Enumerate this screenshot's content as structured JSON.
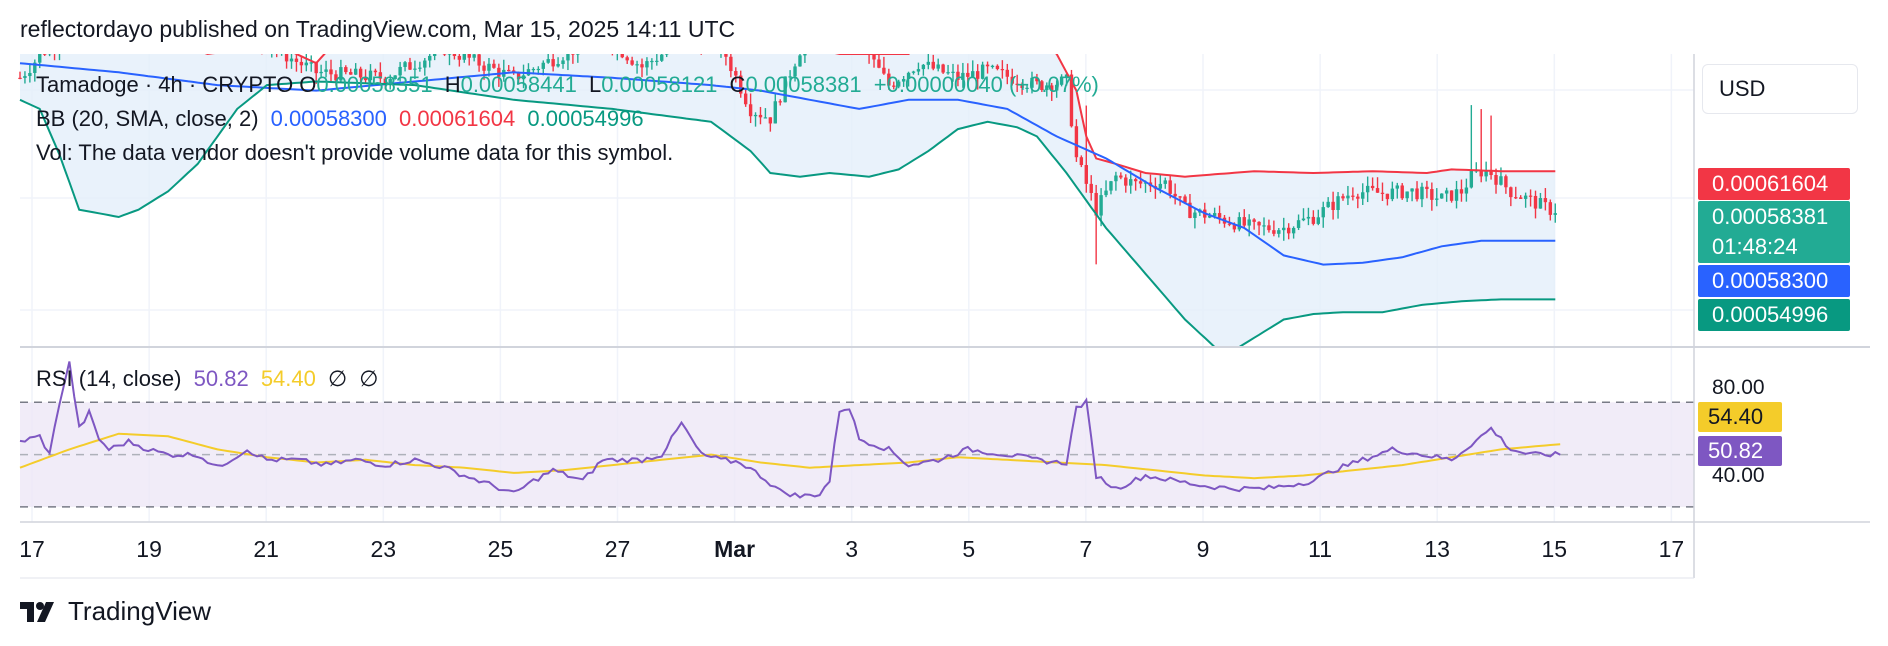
{
  "header": {
    "text": "reflectordayo published on TradingView.com, Mar 15, 2025 14:11 UTC"
  },
  "legend": {
    "symbol": "Tamadoge · 4h · CRYPTO",
    "o_label": "O",
    "o_value": "0.00058351",
    "h_label": "H",
    "h_value": "0.00058441",
    "l_label": "L",
    "l_value": "0.00058121",
    "c_label": "C",
    "c_value": "0.00058381",
    "change": "+0.00000040 (+0.07%)",
    "bb_label": "BB (20, SMA, close, 2)",
    "bb_basis": "0.00058300",
    "bb_upper": "0.00061604",
    "bb_lower": "0.00054996",
    "vol": "Vol: The data vendor doesn't provide volume data for this symbol.",
    "rsi_label": "RSI (14, close)",
    "rsi_value": "50.82",
    "rsi_ma": "54.40",
    "rsi_extra1": "∅",
    "rsi_extra2": "∅"
  },
  "price_scale": {
    "currency": "USD",
    "tag_upper": "0.00061604",
    "tag_close": "0.00058381",
    "tag_countdown": "01:48:24",
    "tag_basis": "0.00058300",
    "tag_lower": "0.00054996"
  },
  "rsi_scale": {
    "tick_high": "80.00",
    "tick_low": "40.00",
    "tag_ma": "54.40",
    "tag_rsi": "50.82"
  },
  "colors": {
    "up": "#22ab94",
    "down": "#f23645",
    "bb_basis": "#2962ff",
    "bb_upper": "#f23645",
    "bb_lower": "#089981",
    "bb_fill": "#e3effa",
    "rsi": "#7e57c2",
    "rsi_ma": "#f4cc2a",
    "rsi_band": "#ede7f6"
  },
  "x_axis": {
    "ticks": [
      "17",
      "19",
      "21",
      "23",
      "25",
      "27",
      "Mar",
      "3",
      "5",
      "7",
      "9",
      "11",
      "13",
      "15",
      "17"
    ]
  },
  "footer": {
    "brand": "TradingView",
    "logo": "tradingview-logo-icon"
  },
  "chart_data": {
    "type": "candlestick",
    "symbol": "Tamadoge",
    "interval": "4h",
    "x_range": [
      "Feb 17",
      "Mar 17"
    ],
    "price_ylim": [
      0.000525,
      0.000685
    ],
    "bollinger": {
      "period": 20,
      "upper_anchor_points": [
        [
          0,
          0.0007
        ],
        [
          8,
          0.00069
        ],
        [
          18,
          0.000705
        ],
        [
          38,
          0.000685
        ],
        [
          52,
          0.00069
        ],
        [
          60,
          0.00068
        ],
        [
          70,
          0.00071
        ],
        [
          80,
          0.00069
        ],
        [
          100,
          0.0007
        ],
        [
          120,
          0.000695
        ],
        [
          135,
          0.00071
        ],
        [
          145,
          0.0007
        ],
        [
          150,
          0.000705
        ],
        [
          158,
          0.00069
        ],
        [
          166,
          0.000685
        ],
        [
          180,
          0.000685
        ],
        [
          186,
          0.0007
        ],
        [
          200,
          0.000705
        ],
        [
          210,
          0.000685
        ],
        [
          214,
          0.000665
        ],
        [
          216,
          0.00064
        ],
        [
          218,
          0.000628
        ],
        [
          222,
          0.000625
        ],
        [
          228,
          0.00062
        ],
        [
          236,
          0.000618
        ],
        [
          250,
          0.000621
        ],
        [
          262,
          0.00062
        ],
        [
          274,
          0.000621
        ],
        [
          285,
          0.00062
        ],
        [
          290,
          0.000622
        ],
        [
          300,
          0.000621
        ]
      ],
      "basis_anchor_points": [
        [
          0,
          0.00068
        ],
        [
          20,
          0.000675
        ],
        [
          40,
          0.000668
        ],
        [
          60,
          0.000665
        ],
        [
          80,
          0.00067
        ],
        [
          100,
          0.000675
        ],
        [
          120,
          0.000672
        ],
        [
          140,
          0.000668
        ],
        [
          150,
          0.000665
        ],
        [
          160,
          0.00066
        ],
        [
          170,
          0.000655
        ],
        [
          180,
          0.00066
        ],
        [
          190,
          0.00066
        ],
        [
          200,
          0.000655
        ],
        [
          210,
          0.00064
        ],
        [
          220,
          0.000628
        ],
        [
          230,
          0.000612
        ],
        [
          240,
          0.000598
        ],
        [
          248,
          0.00059
        ],
        [
          256,
          0.000575
        ],
        [
          264,
          0.00057
        ],
        [
          272,
          0.000571
        ],
        [
          280,
          0.000574
        ],
        [
          288,
          0.00058
        ],
        [
          296,
          0.000583
        ],
        [
          300,
          0.000583
        ]
      ],
      "lower_anchor_points": [
        [
          0,
          0.00066
        ],
        [
          4,
          0.000655
        ],
        [
          8,
          0.00063
        ],
        [
          12,
          0.0006
        ],
        [
          16,
          0.000598
        ],
        [
          20,
          0.000596
        ],
        [
          24,
          0.0006
        ],
        [
          30,
          0.00061
        ],
        [
          36,
          0.000625
        ],
        [
          40,
          0.00064
        ],
        [
          44,
          0.000655
        ],
        [
          50,
          0.000668
        ],
        [
          60,
          0.00067
        ],
        [
          80,
          0.000668
        ],
        [
          100,
          0.00066
        ],
        [
          120,
          0.000655
        ],
        [
          140,
          0.000648
        ],
        [
          148,
          0.000632
        ],
        [
          152,
          0.00062
        ],
        [
          158,
          0.000618
        ],
        [
          164,
          0.00062
        ],
        [
          172,
          0.000618
        ],
        [
          178,
          0.000622
        ],
        [
          184,
          0.000632
        ],
        [
          190,
          0.000644
        ],
        [
          196,
          0.000648
        ],
        [
          202,
          0.000645
        ],
        [
          206,
          0.00064
        ],
        [
          212,
          0.00062
        ],
        [
          220,
          0.00059
        ],
        [
          228,
          0.000565
        ],
        [
          236,
          0.00054
        ],
        [
          244,
          0.00052
        ],
        [
          250,
          0.00053
        ],
        [
          256,
          0.00054
        ],
        [
          262,
          0.000543
        ],
        [
          268,
          0.000544
        ],
        [
          276,
          0.000544
        ],
        [
          284,
          0.000548
        ],
        [
          292,
          0.00055
        ],
        [
          300,
          0.000551
        ]
      ]
    },
    "candles_anchor_closes": [
      [
        0,
        0.000672
      ],
      [
        6,
        0.00069
      ],
      [
        16,
        0.0007
      ],
      [
        26,
        0.000698
      ],
      [
        40,
        0.000702
      ],
      [
        50,
        0.00069
      ],
      [
        60,
        0.000675
      ],
      [
        74,
        0.000672
      ],
      [
        86,
        0.000688
      ],
      [
        100,
        0.000672
      ],
      [
        118,
        0.000695
      ],
      [
        126,
        0.000678
      ],
      [
        134,
        0.000692
      ],
      [
        142,
        0.00069
      ],
      [
        148,
        0.000655
      ],
      [
        152,
        0.00065
      ],
      [
        160,
        0.0007
      ],
      [
        168,
        0.0007
      ],
      [
        176,
        0.000668
      ],
      [
        182,
        0.00068
      ],
      [
        190,
        0.000672
      ],
      [
        196,
        0.000676
      ],
      [
        206,
        0.000668
      ],
      [
        212,
        0.00067
      ],
      [
        214,
        0.000628
      ],
      [
        218,
        0.0006
      ],
      [
        222,
        0.000618
      ],
      [
        226,
        0.000614
      ],
      [
        232,
        0.000615
      ],
      [
        236,
        0.0006
      ],
      [
        242,
        0.000596
      ],
      [
        250,
        0.00059
      ],
      [
        256,
        0.00059
      ],
      [
        262,
        0.000596
      ],
      [
        266,
        0.000603
      ],
      [
        270,
        0.00061
      ],
      [
        276,
        0.000609
      ],
      [
        282,
        0.00061
      ],
      [
        288,
        0.000606
      ],
      [
        292,
        0.00061
      ],
      [
        294,
        0.000618
      ],
      [
        296,
        0.000621
      ],
      [
        298,
        0.00062
      ],
      [
        300,
        0.000615
      ],
      [
        302,
        0.00061
      ],
      [
        306,
        0.000605
      ],
      [
        310,
        0.0006
      ],
      [
        314,
        0.0006
      ]
    ],
    "rsi": {
      "period": 14,
      "levels": [
        70,
        50,
        30
      ],
      "ylim": [
        25,
        90
      ],
      "current": 50.82,
      "ma": 54.4,
      "anchor_points": [
        [
          0,
          55
        ],
        [
          4,
          57
        ],
        [
          6,
          50
        ],
        [
          8,
          70
        ],
        [
          10,
          85
        ],
        [
          12,
          60
        ],
        [
          14,
          66
        ],
        [
          16,
          56
        ],
        [
          18,
          52
        ],
        [
          22,
          55
        ],
        [
          26,
          52
        ],
        [
          30,
          50
        ],
        [
          36,
          50
        ],
        [
          40,
          45
        ],
        [
          46,
          52
        ],
        [
          50,
          48
        ],
        [
          56,
          48
        ],
        [
          62,
          46
        ],
        [
          68,
          48
        ],
        [
          74,
          46
        ],
        [
          80,
          48
        ],
        [
          86,
          45
        ],
        [
          90,
          42
        ],
        [
          96,
          38
        ],
        [
          100,
          35
        ],
        [
          104,
          40
        ],
        [
          108,
          44
        ],
        [
          114,
          40
        ],
        [
          118,
          48
        ],
        [
          126,
          48
        ],
        [
          130,
          50
        ],
        [
          134,
          62
        ],
        [
          138,
          50
        ],
        [
          142,
          48
        ],
        [
          146,
          47
        ],
        [
          150,
          42
        ],
        [
          154,
          36
        ],
        [
          158,
          34
        ],
        [
          162,
          35
        ],
        [
          164,
          40
        ],
        [
          166,
          67
        ],
        [
          168,
          68
        ],
        [
          170,
          56
        ],
        [
          176,
          52
        ],
        [
          180,
          46
        ],
        [
          186,
          48
        ],
        [
          192,
          52
        ],
        [
          200,
          50
        ],
        [
          206,
          48
        ],
        [
          210,
          47
        ],
        [
          212,
          47
        ],
        [
          214,
          68
        ],
        [
          216,
          70
        ],
        [
          218,
          42
        ],
        [
          222,
          37
        ],
        [
          228,
          42
        ],
        [
          234,
          40
        ],
        [
          240,
          38
        ],
        [
          246,
          37
        ],
        [
          252,
          37
        ],
        [
          256,
          38
        ],
        [
          262,
          40
        ],
        [
          266,
          44
        ],
        [
          272,
          48
        ],
        [
          278,
          52
        ],
        [
          284,
          50
        ],
        [
          290,
          48
        ],
        [
          294,
          54
        ],
        [
          298,
          60
        ],
        [
          302,
          52
        ],
        [
          306,
          50
        ],
        [
          312,
          50
        ]
      ],
      "ma_anchor_points": [
        [
          0,
          45
        ],
        [
          10,
          52
        ],
        [
          20,
          58
        ],
        [
          30,
          57
        ],
        [
          40,
          52
        ],
        [
          50,
          49
        ],
        [
          60,
          47
        ],
        [
          70,
          48
        ],
        [
          80,
          46
        ],
        [
          90,
          45
        ],
        [
          100,
          43
        ],
        [
          110,
          44
        ],
        [
          120,
          46
        ],
        [
          130,
          48
        ],
        [
          140,
          50
        ],
        [
          150,
          47
        ],
        [
          160,
          45
        ],
        [
          170,
          46
        ],
        [
          180,
          47
        ],
        [
          190,
          49
        ],
        [
          200,
          48
        ],
        [
          210,
          47
        ],
        [
          220,
          46
        ],
        [
          230,
          44
        ],
        [
          240,
          42
        ],
        [
          250,
          41
        ],
        [
          260,
          42
        ],
        [
          270,
          44
        ],
        [
          280,
          46
        ],
        [
          290,
          49
        ],
        [
          300,
          52
        ],
        [
          312,
          54
        ]
      ]
    }
  }
}
